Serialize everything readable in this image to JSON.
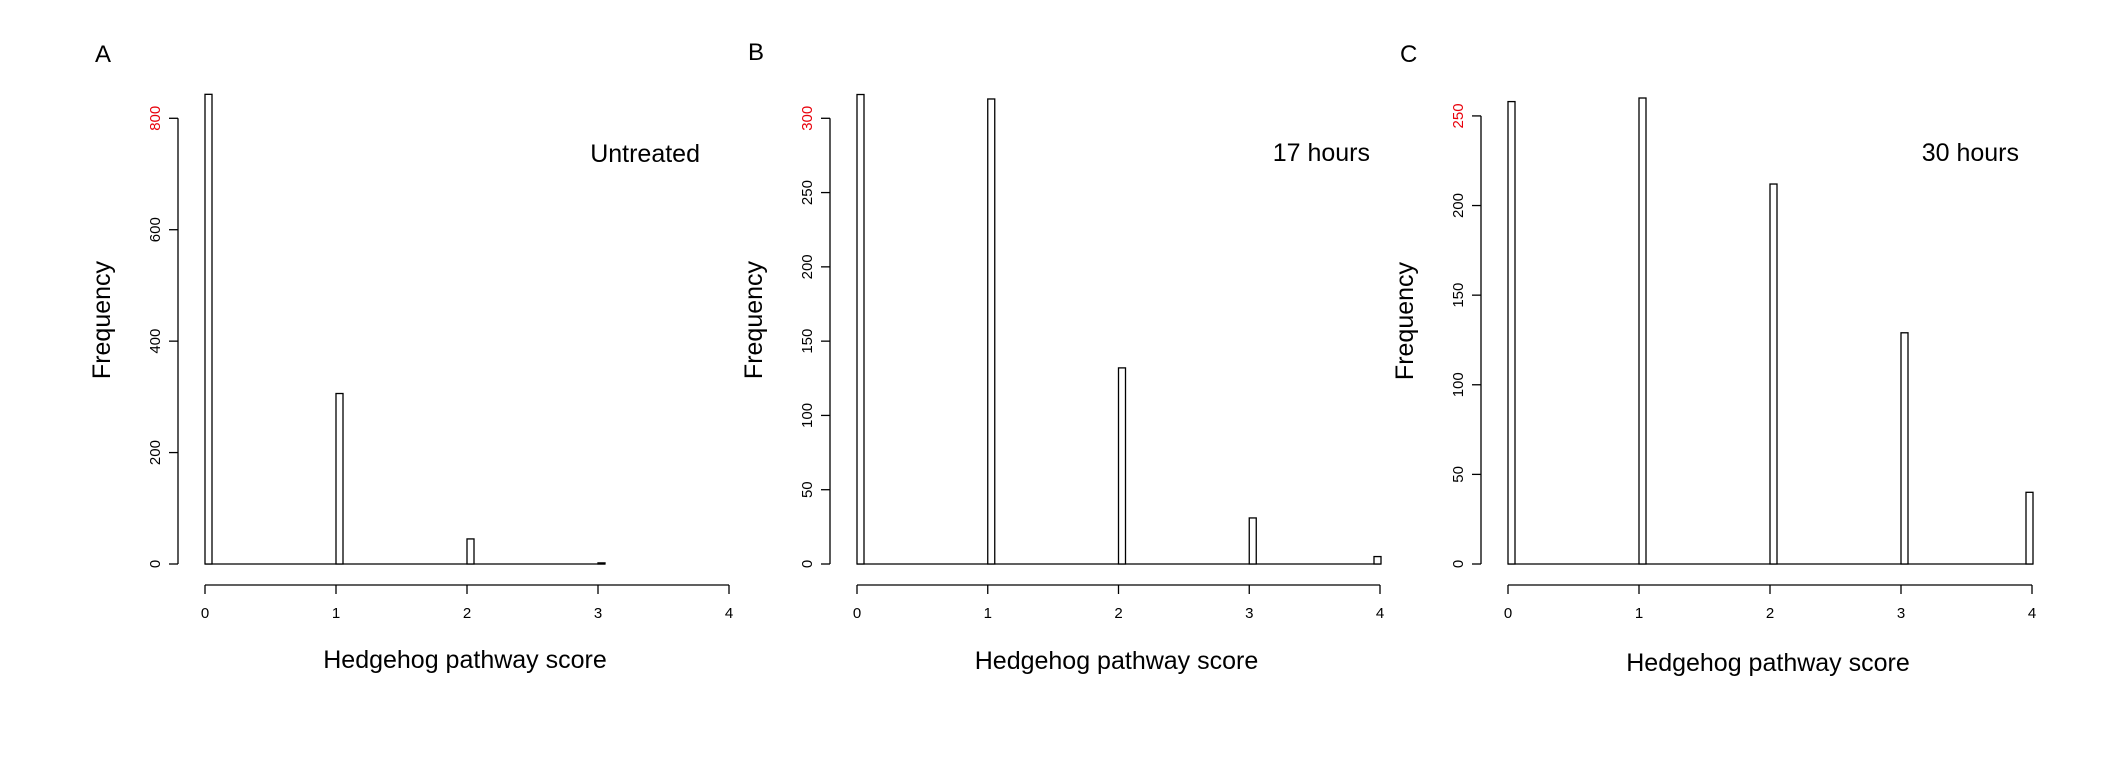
{
  "colors": {
    "highlight_tick": "#e8000b",
    "ink": "#000000"
  },
  "chart_data": [
    {
      "type": "bar",
      "panel": "A",
      "annotation": "Untreated",
      "xlabel": "Hedgehog pathway score",
      "ylabel": "Frequency",
      "xlim": [
        0,
        4
      ],
      "ylim": [
        0,
        840
      ],
      "xticks": [
        "0",
        "1",
        "2",
        "3",
        "4"
      ],
      "yticks": [
        0,
        200,
        400,
        600,
        800
      ],
      "highlight_ytick": 800,
      "x": [
        0,
        1,
        2,
        3
      ],
      "values": [
        843,
        306,
        45,
        2
      ]
    },
    {
      "type": "bar",
      "panel": "B",
      "annotation": "17 hours",
      "xlabel": "Hedgehog pathway score",
      "ylabel": "Frequency",
      "xlim": [
        0,
        4
      ],
      "ylim": [
        0,
        315
      ],
      "xticks": [
        "0",
        "1",
        "2",
        "3",
        "4"
      ],
      "yticks": [
        0,
        50,
        100,
        150,
        200,
        250,
        300
      ],
      "highlight_ytick": 300,
      "x": [
        0,
        1,
        2,
        3,
        4
      ],
      "values": [
        316,
        313,
        132,
        31,
        5
      ]
    },
    {
      "type": "bar",
      "panel": "C",
      "annotation": "30 hours",
      "xlabel": "Hedgehog pathway score",
      "ylabel": "Frequency",
      "xlim": [
        0,
        4
      ],
      "ylim": [
        0,
        260
      ],
      "xticks": [
        "0",
        "1",
        "2",
        "3",
        "4"
      ],
      "yticks": [
        0,
        50,
        100,
        150,
        200,
        250
      ],
      "highlight_ytick": 250,
      "x": [
        0,
        1,
        2,
        3,
        4
      ],
      "values": [
        258,
        260,
        212,
        129,
        40
      ]
    }
  ]
}
